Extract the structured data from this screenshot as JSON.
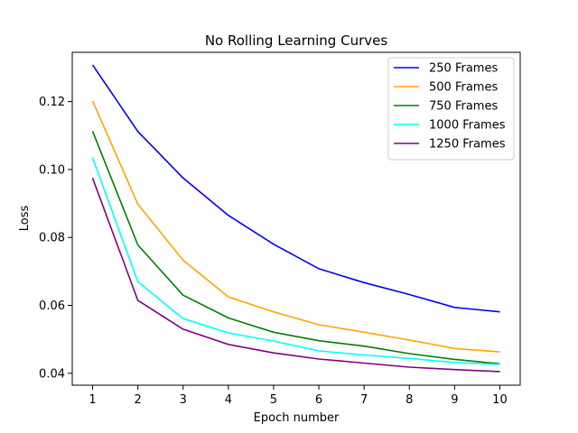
{
  "chart_data": {
    "type": "line",
    "title": "No Rolling Learning Curves",
    "xlabel": "Epoch number",
    "ylabel": "Loss",
    "x": [
      1,
      2,
      3,
      4,
      5,
      6,
      7,
      8,
      9,
      10
    ],
    "xticks": [
      "1",
      "2",
      "3",
      "4",
      "5",
      "6",
      "7",
      "8",
      "9",
      "10"
    ],
    "yticks": [
      "0.04",
      "0.06",
      "0.08",
      "0.10",
      "0.12"
    ],
    "ytick_values": [
      0.04,
      0.06,
      0.08,
      0.1,
      0.12
    ],
    "xlim": [
      0.55,
      10.45
    ],
    "ylim": [
      0.0365,
      0.1345
    ],
    "grid": false,
    "legend_position": "top-right",
    "series": [
      {
        "name": "250 Frames",
        "color": "#0000ff",
        "values": [
          0.1308,
          0.1112,
          0.0975,
          0.0865,
          0.078,
          0.0708,
          0.0667,
          0.0632,
          0.0594,
          0.0581
        ]
      },
      {
        "name": "500 Frames",
        "color": "#ffa500",
        "values": [
          0.1202,
          0.0898,
          0.0733,
          0.0625,
          0.0581,
          0.0543,
          0.0521,
          0.0498,
          0.0473,
          0.0463
        ]
      },
      {
        "name": "750 Frames",
        "color": "#008000",
        "values": [
          0.1113,
          0.0778,
          0.063,
          0.0563,
          0.0521,
          0.0496,
          0.048,
          0.0458,
          0.0441,
          0.0428
        ]
      },
      {
        "name": "1000 Frames",
        "color": "#00ffff",
        "values": [
          0.1035,
          0.067,
          0.0561,
          0.0519,
          0.0495,
          0.0466,
          0.0454,
          0.0444,
          0.0432,
          0.0426
        ]
      },
      {
        "name": "1250 Frames",
        "color": "#800080",
        "values": [
          0.0975,
          0.0615,
          0.053,
          0.0485,
          0.046,
          0.0442,
          0.043,
          0.0418,
          0.0411,
          0.0405
        ]
      }
    ]
  }
}
